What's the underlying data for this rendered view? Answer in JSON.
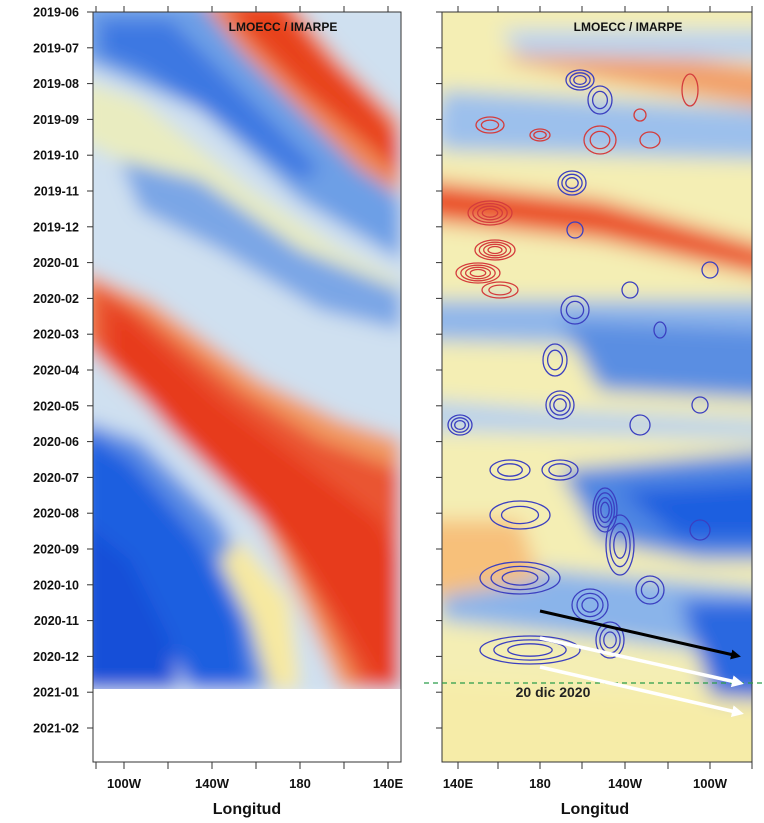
{
  "chart_data": [
    {
      "type": "heatmap",
      "panel": "left",
      "credit": "LMOECC / IMARPE",
      "xlabel": "Longitud",
      "x_ticks": [
        "100W",
        "140W",
        "180",
        "140E"
      ],
      "y_ticks": [
        "2019-06",
        "2019-07",
        "2019-08",
        "2019-09",
        "2019-10",
        "2019-11",
        "2019-12",
        "2020-01",
        "2020-02",
        "2020-03",
        "2020-04",
        "2020-05",
        "2020-06",
        "2020-07",
        "2020-08",
        "2020-09",
        "2020-10",
        "2020-11",
        "2020-12",
        "2021-01",
        "2021-02"
      ],
      "data_end": "2020-12-20",
      "colors": {
        "warm": "#e8321e",
        "neutral": "#fbf3b0",
        "cold": "#1a5ee0"
      }
    },
    {
      "type": "heatmap",
      "panel": "right",
      "credit": "LMOECC / IMARPE",
      "xlabel": "Longitud",
      "x_ticks": [
        "140E",
        "180",
        "140W",
        "100W"
      ],
      "y_ticks": [
        "2019-06",
        "2019-07",
        "2019-08",
        "2019-09",
        "2019-10",
        "2019-11",
        "2019-12",
        "2020-01",
        "2020-02",
        "2020-03",
        "2020-04",
        "2020-05",
        "2020-06",
        "2020-07",
        "2020-08",
        "2020-09",
        "2020-10",
        "2020-11",
        "2020-12",
        "2021-01",
        "2021-02"
      ],
      "annotation": "20 dic 2020",
      "arrows": [
        "black",
        "white",
        "white"
      ],
      "contour_colors": {
        "positive": "#d43c3c",
        "negative": "#3b3fc0"
      }
    }
  ]
}
